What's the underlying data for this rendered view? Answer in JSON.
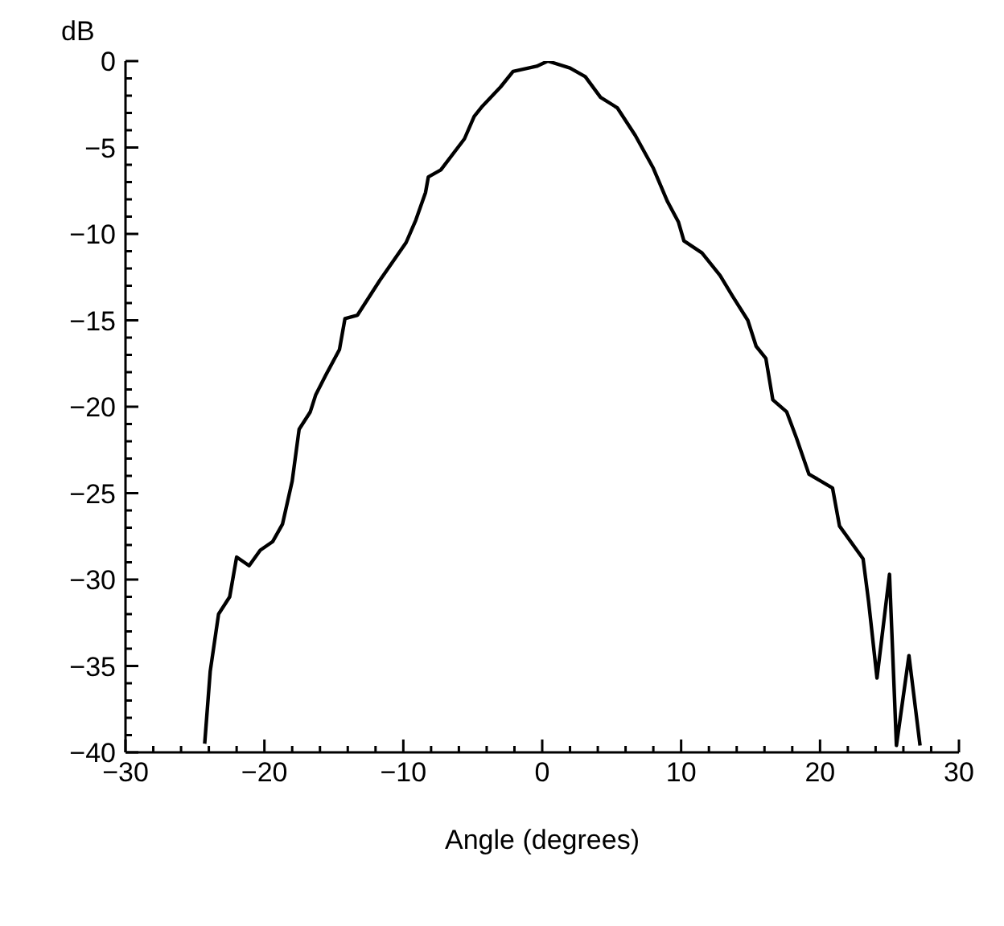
{
  "chart_data": {
    "type": "line",
    "xlabel": "Angle (degrees)",
    "ylabel": "dB",
    "x": [
      -24.3,
      -23.9,
      -23.3,
      -22.5,
      -22.0,
      -21.1,
      -20.3,
      -19.4,
      -18.7,
      -18.0,
      -17.5,
      -16.7,
      -16.3,
      -15.6,
      -14.6,
      -14.2,
      -13.3,
      -11.7,
      -9.8,
      -9.1,
      -8.4,
      -8.2,
      -7.3,
      -5.6,
      -4.9,
      -4.3,
      -3.0,
      -2.1,
      -0.4,
      0.4,
      2.0,
      3.1,
      4.2,
      5.4,
      6.7,
      8.0,
      9.0,
      9.8,
      10.2,
      11.5,
      12.8,
      13.7,
      14.8,
      15.4,
      16.1,
      16.6,
      17.6,
      18.3,
      19.2,
      20.9,
      21.4,
      23.1,
      23.5,
      24.1,
      25.0,
      25.5,
      26.4,
      27.2
    ],
    "series": [
      {
        "color": "#000000",
        "values": [
          -39.5,
          -35.3,
          -32.0,
          -31.0,
          -28.7,
          -29.2,
          -28.3,
          -27.8,
          -26.8,
          -24.3,
          -21.3,
          -20.3,
          -19.3,
          -18.2,
          -16.7,
          -14.9,
          -14.7,
          -12.7,
          -10.5,
          -9.2,
          -7.6,
          -6.7,
          -6.3,
          -4.5,
          -3.2,
          -2.6,
          -1.5,
          -0.6,
          -0.3,
          0,
          -0.4,
          -0.9,
          -2.1,
          -2.7,
          -4.3,
          -6.2,
          -8.1,
          -9.3,
          -10.4,
          -11.1,
          -12.4,
          -13.6,
          -15.0,
          -16.5,
          -17.2,
          -19.6,
          -20.3,
          -21.8,
          -23.9,
          -24.7,
          -26.9,
          -28.8,
          -31.3,
          -35.7,
          -29.7,
          -39.6,
          -34.4,
          -39.6
        ]
      }
    ],
    "xlim": [
      -30,
      30
    ],
    "xticks": [
      -30,
      {
        "value": -28,
        "label": null
      },
      {
        "value": -26,
        "label": null
      },
      {
        "value": -24,
        "label": null
      },
      {
        "value": -22,
        "label": null
      },
      -20,
      {
        "value": -18,
        "label": null
      },
      {
        "value": -16,
        "label": null
      },
      {
        "value": -14,
        "label": null
      },
      {
        "value": -12,
        "label": null
      },
      -10,
      {
        "value": -8,
        "label": null
      },
      {
        "value": -6,
        "label": null
      },
      {
        "value": -4,
        "label": null
      },
      {
        "value": -2,
        "label": null
      },
      0,
      {
        "value": 2,
        "label": null
      },
      {
        "value": 4,
        "label": null
      },
      {
        "value": 6,
        "label": null
      },
      {
        "value": 8,
        "label": null
      },
      10,
      {
        "value": 12,
        "label": null
      },
      {
        "value": 14,
        "label": null
      },
      {
        "value": 16,
        "label": null
      },
      {
        "value": 18,
        "label": null
      },
      20,
      {
        "value": 22,
        "label": null
      },
      {
        "value": 24,
        "label": null
      },
      {
        "value": 26,
        "label": null
      },
      {
        "value": 28,
        "label": null
      },
      30
    ],
    "ylim": [
      -40,
      0
    ],
    "yticks": [
      0,
      {
        "value": -1,
        "label": null
      },
      {
        "value": -2,
        "label": null
      },
      {
        "value": -3,
        "label": null
      },
      {
        "value": -4,
        "label": null
      },
      -5,
      {
        "value": -6,
        "label": null
      },
      {
        "value": -7,
        "label": null
      },
      {
        "value": -8,
        "label": null
      },
      {
        "value": -9,
        "label": null
      },
      -10,
      {
        "value": -11,
        "label": null
      },
      {
        "value": -12,
        "label": null
      },
      {
        "value": -13,
        "label": null
      },
      {
        "value": -14,
        "label": null
      },
      -15,
      {
        "value": -16,
        "label": null
      },
      {
        "value": -17,
        "label": null
      },
      {
        "value": -18,
        "label": null
      },
      {
        "value": -19,
        "label": null
      },
      -20,
      {
        "value": -21,
        "label": null
      },
      {
        "value": -22,
        "label": null
      },
      {
        "value": -23,
        "label": null
      },
      {
        "value": -24,
        "label": null
      },
      -25,
      {
        "value": -26,
        "label": null
      },
      {
        "value": -27,
        "label": null
      },
      {
        "value": -28,
        "label": null
      },
      {
        "value": -29,
        "label": null
      },
      -30,
      {
        "value": -31,
        "label": null
      },
      {
        "value": -32,
        "label": null
      },
      {
        "value": -33,
        "label": null
      },
      {
        "value": -34,
        "label": null
      },
      -35,
      {
        "value": -36,
        "label": null
      },
      {
        "value": -37,
        "label": null
      },
      {
        "value": -38,
        "label": null
      },
      {
        "value": -39,
        "label": null
      },
      -40
    ],
    "grid": false,
    "marker": "none",
    "line_style": "solid"
  }
}
